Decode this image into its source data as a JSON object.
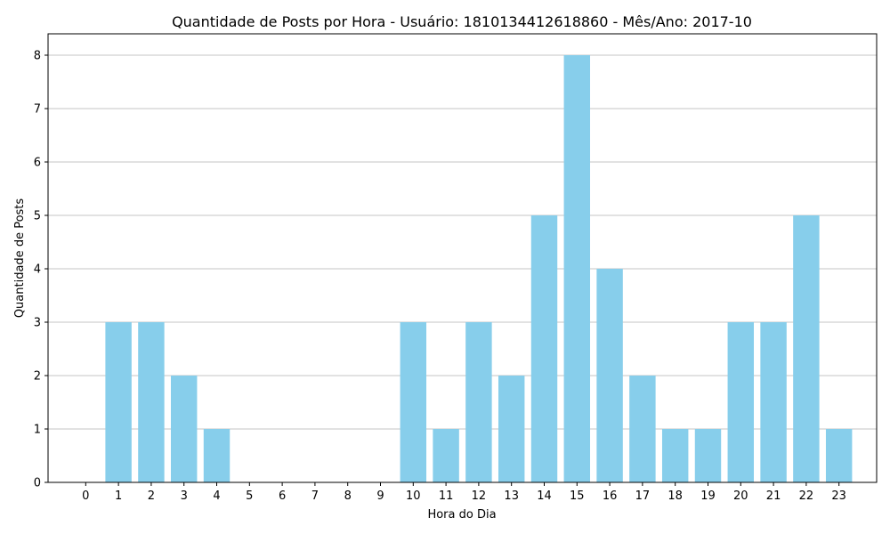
{
  "chart_data": {
    "type": "bar",
    "title": "Quantidade de Posts por Hora - Usuário: 1810134412618860 - Mês/Ano: 2017-10",
    "xlabel": "Hora do Dia",
    "ylabel": "Quantidade de Posts",
    "categories": [
      "0",
      "1",
      "2",
      "3",
      "4",
      "5",
      "6",
      "7",
      "8",
      "9",
      "10",
      "11",
      "12",
      "13",
      "14",
      "15",
      "16",
      "17",
      "18",
      "19",
      "20",
      "21",
      "22",
      "23"
    ],
    "values": [
      0,
      3,
      3,
      2,
      1,
      0,
      0,
      0,
      0,
      0,
      3,
      1,
      3,
      2,
      5,
      8,
      4,
      2,
      1,
      1,
      3,
      3,
      5,
      1
    ],
    "ylim": [
      0,
      8.4
    ],
    "yticks": [
      0,
      1,
      2,
      3,
      4,
      5,
      6,
      7,
      8
    ],
    "grid": "y",
    "bar_color": "#87ceeb",
    "grid_color": "#b0b0b0"
  }
}
